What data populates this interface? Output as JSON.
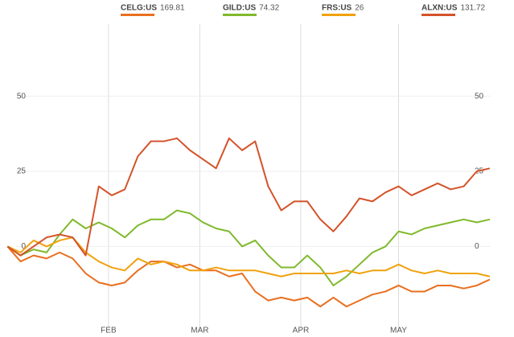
{
  "chart_data": {
    "type": "line",
    "x": [
      1,
      5,
      9,
      13,
      17,
      21,
      25,
      29,
      33,
      37,
      41,
      45,
      49,
      53,
      57,
      61,
      65,
      69,
      73,
      77,
      81,
      85,
      89,
      93,
      97,
      101,
      105,
      109,
      113,
      117,
      121,
      125,
      129,
      133,
      137,
      141,
      145,
      149
    ],
    "xlim": [
      -1.3,
      154.2
    ],
    "xticks": [
      {
        "value": 32,
        "label": "FEB"
      },
      {
        "value": 60,
        "label": "MAR"
      },
      {
        "value": 91,
        "label": "APR"
      },
      {
        "value": 121,
        "label": "MAY"
      }
    ],
    "ylim": [
      -28,
      74
    ],
    "yticks": [
      0,
      25,
      50
    ],
    "grid": true,
    "series": [
      {
        "name": "CELG:US",
        "last": 169.81,
        "color": "#e96f1f",
        "values": [
          0,
          -5,
          -3,
          -4,
          -2,
          -4,
          -9,
          -12,
          -13,
          -12,
          -8,
          -5,
          -5,
          -7,
          -6,
          -8,
          -8,
          -10,
          -9,
          -15,
          -18,
          -17,
          -18,
          -17,
          -20,
          -17,
          -20,
          -18,
          -16,
          -15,
          -13,
          -15,
          -15,
          -13,
          -13,
          -14,
          -13,
          -11
        ]
      },
      {
        "name": "GILD:US",
        "last": 74.32,
        "color": "#80b92c",
        "values": [
          0,
          -3,
          -1,
          -2,
          4,
          9,
          6,
          8,
          6,
          3,
          7,
          9,
          9,
          12,
          11,
          8,
          6,
          5,
          0,
          2,
          -3,
          -7,
          -7,
          -3,
          -7,
          -13,
          -10,
          -6,
          -2,
          0,
          5,
          4,
          6,
          7,
          8,
          9,
          8,
          9
        ]
      },
      {
        "name": "FRS:US",
        "last": 26,
        "color": "#f0a20e",
        "values": [
          0,
          -2,
          2,
          0,
          2,
          3,
          -2,
          -5,
          -7,
          -8,
          -4,
          -6,
          -5,
          -6,
          -8,
          -8,
          -7,
          -8,
          -8,
          -8,
          -9,
          -10,
          -9,
          -9,
          -9,
          -9,
          -8,
          -9,
          -8,
          -8,
          -6,
          -8,
          -9,
          -8,
          -9,
          -9,
          -9,
          -10
        ]
      },
      {
        "name": "ALXN:US",
        "last": 131.72,
        "color": "#d4532a",
        "values": [
          0,
          -3,
          0,
          3,
          4,
          3,
          -3,
          20,
          17,
          19,
          30,
          35,
          35,
          36,
          32,
          29,
          26,
          36,
          32,
          35,
          20,
          12,
          15,
          15,
          9,
          5,
          10,
          16,
          15,
          18,
          20,
          17,
          19,
          21,
          19,
          20,
          25,
          26
        ]
      }
    ]
  }
}
